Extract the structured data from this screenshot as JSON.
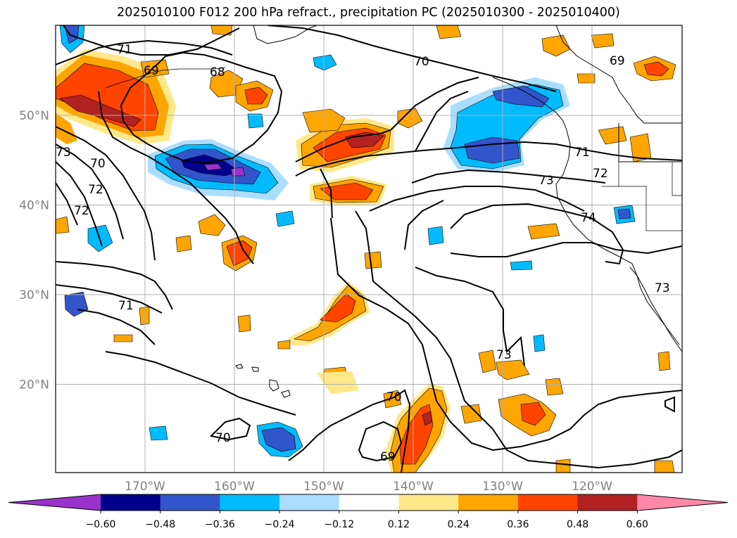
{
  "title": "2025010100 F012 200 hPa refract., precipitation PC (2025010300 - 2025010400)",
  "map": {
    "lon_ticks": [
      {
        "lon": -170,
        "label": "170°W"
      },
      {
        "lon": -160,
        "label": "160°W"
      },
      {
        "lon": -150,
        "label": "150°W"
      },
      {
        "lon": -140,
        "label": "140°W"
      },
      {
        "lon": -130,
        "label": "130°W"
      },
      {
        "lon": -120,
        "label": "120°W"
      }
    ],
    "lat_ticks": [
      {
        "lat": 50,
        "label": "50°N"
      },
      {
        "lat": 40,
        "label": "40°N"
      },
      {
        "lat": 30,
        "label": "30°N"
      },
      {
        "lat": 20,
        "label": "20°N"
      }
    ],
    "contour_labels": [
      "71",
      "69",
      "68",
      "70",
      "69",
      "73",
      "70",
      "72",
      "72",
      "71",
      "72",
      "73",
      "74",
      "71",
      "73",
      "70",
      "69",
      "70",
      "73"
    ],
    "colors": {
      "tick_label": "#808080",
      "grid": "#b0b0b0",
      "contour": "#000000",
      "coast": "#000000"
    }
  },
  "colorbar": {
    "colors": [
      "#9933cc",
      "#00008b",
      "#3355cc",
      "#00bbff",
      "#aaddff",
      "#ffffff",
      "#ffe88a",
      "#ffa500",
      "#ff4400",
      "#b22222",
      "#ff88aa"
    ],
    "tick_labels": [
      "−0.60",
      "−0.48",
      "−0.36",
      "−0.24",
      "−0.12",
      "0.12",
      "0.24",
      "0.36",
      "0.48",
      "0.60"
    ]
  }
}
